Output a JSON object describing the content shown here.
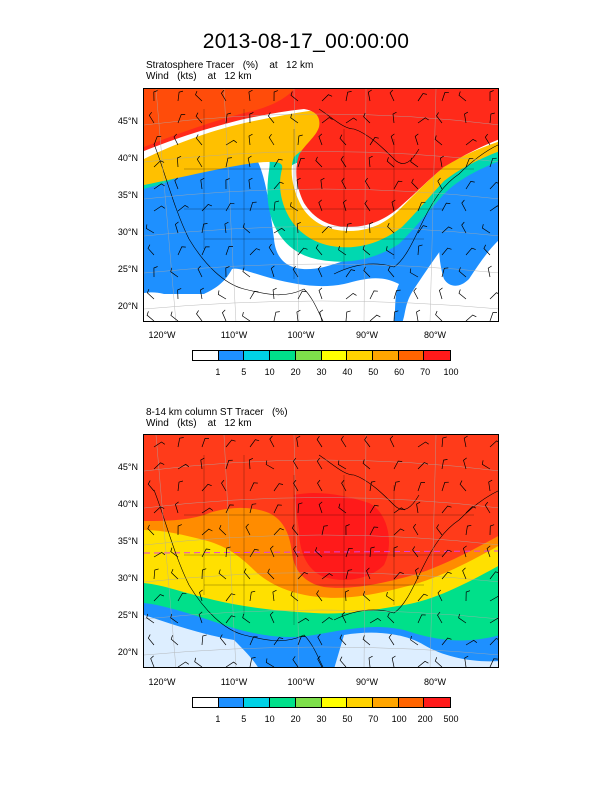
{
  "title": "2013-08-17_00:00:00",
  "panels": [
    {
      "id": "top",
      "label_line1": "Stratosphere Tracer   (%)    at   12 km",
      "label_line2": "Wind   (kts)    at   12 km",
      "lat_ticks": [
        "45°N",
        "40°N",
        "35°N",
        "30°N",
        "25°N",
        "20°N"
      ],
      "lon_ticks": [
        "120°W",
        "110°W",
        "100°W",
        "90°W",
        "80°W"
      ],
      "colorbar_levels": [
        "1",
        "5",
        "10",
        "20",
        "30",
        "40",
        "50",
        "60",
        "70",
        "100"
      ],
      "colorbar_colors": [
        "#ffffff",
        "#1e90ff",
        "#00d2e6",
        "#00e08a",
        "#7ee04a",
        "#ffff00",
        "#ffd200",
        "#ffa500",
        "#ff6400",
        "#ff1a1a"
      ]
    },
    {
      "id": "bottom",
      "label_line1": "8-14 km column ST Tracer   (%)",
      "label_line2": "Wind   (kts)    at   12 km",
      "lat_ticks": [
        "45°N",
        "40°N",
        "35°N",
        "30°N",
        "25°N",
        "20°N"
      ],
      "lon_ticks": [
        "120°W",
        "110°W",
        "100°W",
        "90°W",
        "80°W"
      ],
      "colorbar_levels": [
        "1",
        "5",
        "10",
        "20",
        "30",
        "50",
        "70",
        "100",
        "200",
        "500"
      ],
      "colorbar_colors": [
        "#ffffff",
        "#1e90ff",
        "#00d2e6",
        "#00e08a",
        "#7ee04a",
        "#ffff00",
        "#ffd200",
        "#ffa500",
        "#ff6400",
        "#ff1a1a"
      ]
    }
  ]
}
